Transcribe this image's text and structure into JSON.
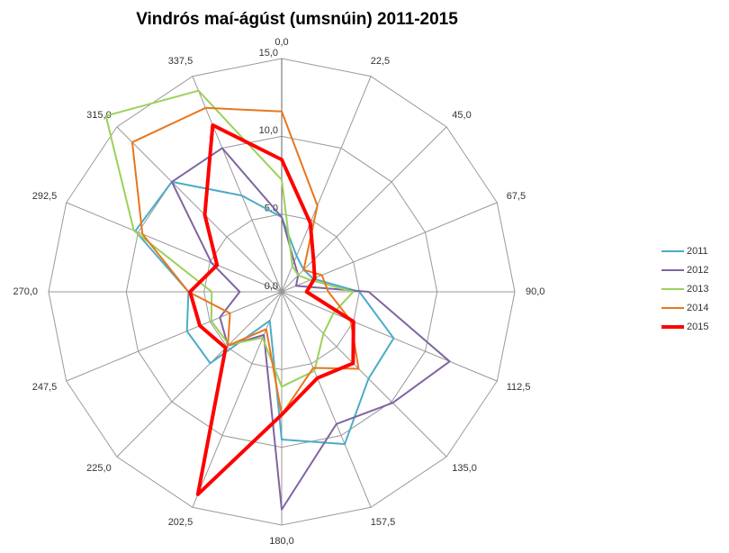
{
  "chart_data": {
    "type": "radar",
    "title": "Vindrós maí-ágúst (umsnúin) 2011-2015",
    "categories": [
      "0,0",
      "22,5",
      "45,0",
      "67,5",
      "90,0",
      "112,5",
      "135,0",
      "157,5",
      "180,0",
      "202,5",
      "225,0",
      "247,5",
      "270,0",
      "292,5",
      "315,0",
      "337,5"
    ],
    "ylim": [
      0,
      15
    ],
    "yticks": [
      {
        "value": 0,
        "label": "0,0"
      },
      {
        "value": 5,
        "label": "5,0"
      },
      {
        "value": 10,
        "label": "10,0"
      },
      {
        "value": 15,
        "label": "15,0"
      }
    ],
    "grid": true,
    "legend": "right",
    "series": [
      {
        "name": "2011",
        "color": "#4bacc6",
        "width": 2,
        "values": [
          4.8,
          2.5,
          2.0,
          2.2,
          5.0,
          7.8,
          7.9,
          10.6,
          9.5,
          2.0,
          6.5,
          6.6,
          6.0,
          10.2,
          10.0,
          6.7
        ]
      },
      {
        "name": "2012",
        "color": "#8064a2",
        "width": 2,
        "values": [
          4.8,
          2.1,
          1.5,
          1.0,
          5.6,
          11.7,
          10.1,
          9.2,
          14.0,
          3.0,
          4.9,
          4.3,
          2.7,
          4.9,
          10.0,
          10.0
        ]
      },
      {
        "name": "2013",
        "color": "#9bd15a",
        "width": 2,
        "values": [
          7.2,
          1.8,
          1.5,
          2.0,
          4.6,
          3.6,
          3.8,
          5.5,
          6.1,
          3.2,
          4.8,
          4.9,
          4.5,
          10.3,
          16.0,
          14.0
        ]
      },
      {
        "name": "2014",
        "color": "#e9761c",
        "width": 2,
        "values": [
          11.6,
          6.0,
          2.0,
          2.8,
          3.0,
          4.8,
          7.0,
          5.3,
          7.9,
          2.6,
          4.9,
          3.6,
          6.0,
          9.7,
          13.6,
          12.8
        ]
      },
      {
        "name": "2015",
        "color": "#ff0000",
        "width": 4,
        "values": [
          8.5,
          4.8,
          2.9,
          2.3,
          1.6,
          5.0,
          6.5,
          6.0,
          7.9,
          14.1,
          5.1,
          5.7,
          5.9,
          4.5,
          7.0,
          11.6
        ]
      }
    ]
  }
}
